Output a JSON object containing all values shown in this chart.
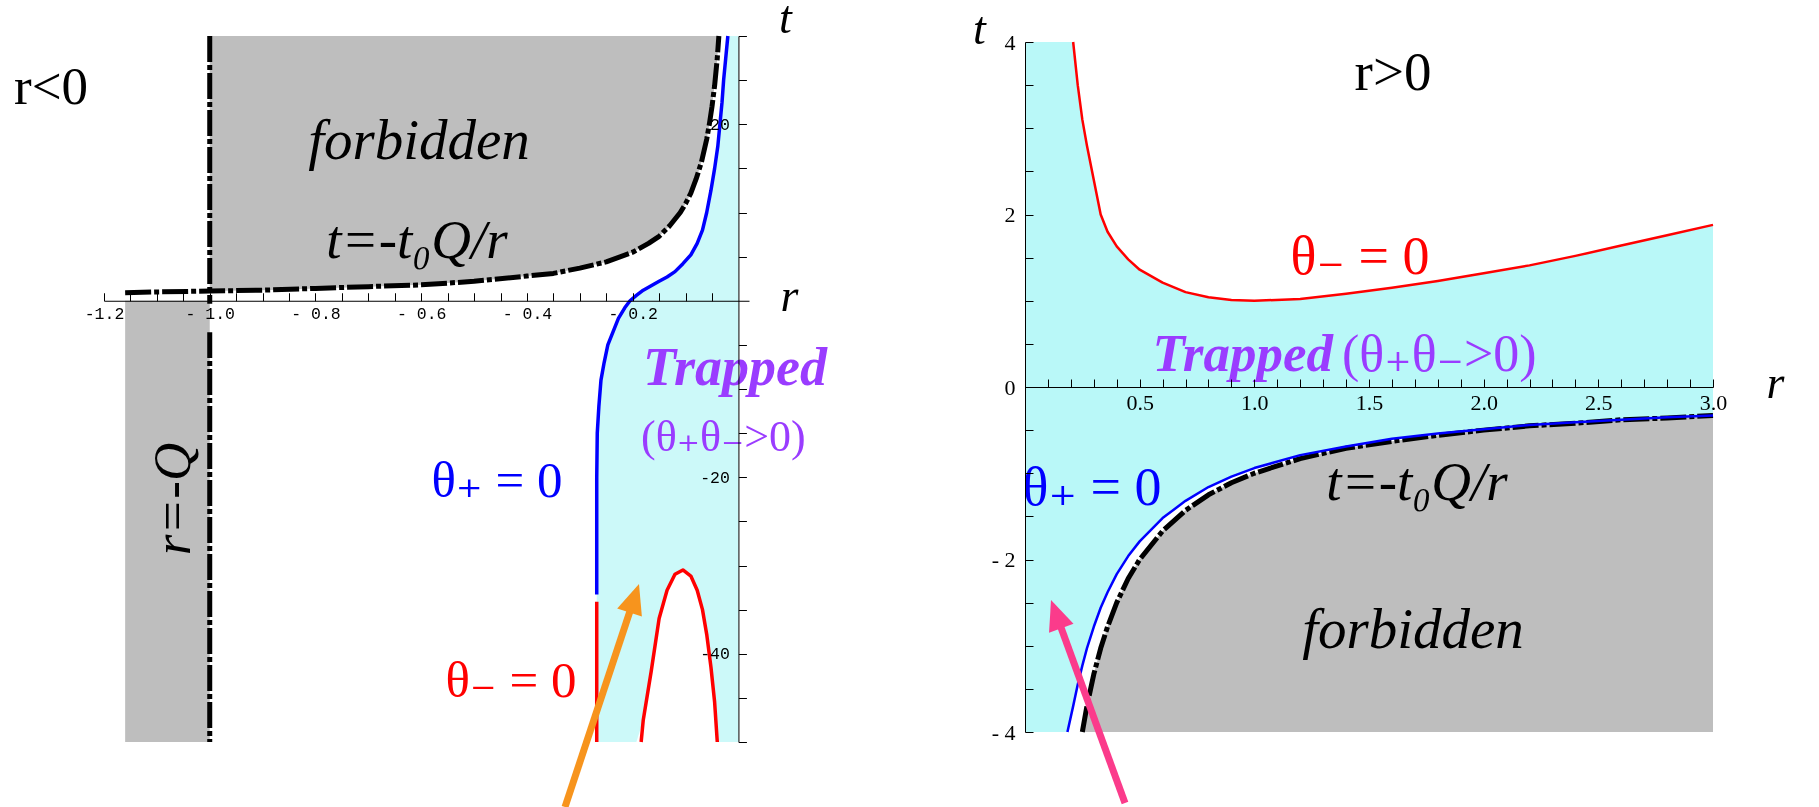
{
  "chart_data": [
    {
      "type": "line",
      "title": "r<0",
      "xlabel": "r",
      "ylabel": "t",
      "xlim": [
        -1.2,
        0.02
      ],
      "ylim": [
        -50,
        30
      ],
      "xticks": [
        -1.2,
        {
          "value": -1.15,
          "label": null
        },
        {
          "value": -1.1,
          "label": null
        },
        {
          "value": -1.05,
          "label": null
        },
        {
          "value": -1.0,
          "label": "- 1.0"
        },
        {
          "value": -0.95,
          "label": null
        },
        {
          "value": -0.9,
          "label": null
        },
        {
          "value": -0.85,
          "label": null
        },
        {
          "value": -0.8,
          "label": "- 0.8"
        },
        {
          "value": -0.75,
          "label": null
        },
        {
          "value": -0.7,
          "label": null
        },
        {
          "value": -0.65,
          "label": null
        },
        {
          "value": -0.6,
          "label": "- 0.6"
        },
        {
          "value": -0.55,
          "label": null
        },
        {
          "value": -0.5,
          "label": null
        },
        {
          "value": -0.45,
          "label": null
        },
        {
          "value": -0.4,
          "label": "- 0.4"
        },
        {
          "value": -0.35,
          "label": null
        },
        {
          "value": -0.3,
          "label": null
        },
        {
          "value": -0.25,
          "label": null
        },
        {
          "value": -0.2,
          "label": "- 0.2"
        },
        {
          "value": -0.15,
          "label": null
        },
        {
          "value": -0.1,
          "label": null
        },
        {
          "value": -0.05,
          "label": null
        }
      ],
      "yticks": [
        {
          "value": 30,
          "label": null
        },
        {
          "value": 25,
          "label": null
        },
        20,
        {
          "value": 15,
          "label": null
        },
        {
          "value": 10,
          "label": null
        },
        {
          "value": 5,
          "label": null
        },
        {
          "value": -5,
          "label": null
        },
        {
          "value": -10,
          "label": null
        },
        {
          "value": -15,
          "label": null
        },
        -20,
        {
          "value": -25,
          "label": null
        },
        {
          "value": -30,
          "label": null
        },
        {
          "value": -35,
          "label": null
        },
        -40,
        {
          "value": -45,
          "label": null
        },
        {
          "value": -50,
          "label": null
        }
      ],
      "series": [
        {
          "color": "#0000ff",
          "x": [
            -0.268,
            -0.268,
            -0.267,
            -0.264,
            -0.26,
            -0.254,
            -0.247,
            -0.237,
            -0.227,
            -0.215,
            -0.205,
            -0.193,
            -0.18,
            -0.165,
            -0.15,
            -0.135,
            -0.12,
            -0.105,
            -0.09,
            -0.078,
            -0.068,
            -0.06,
            -0.052,
            -0.045,
            -0.039,
            -0.035,
            -0.031,
            -0.028,
            -0.024,
            -0.02,
            0
          ],
          "values": [
            -33.3,
            -20,
            -15,
            -12,
            -9,
            -7,
            -5,
            -3.5,
            -2,
            -0.8,
            0,
            0.6,
            1.2,
            1.7,
            2.2,
            2.7,
            3.3,
            4.2,
            5.2,
            6.5,
            8,
            10,
            12.5,
            15,
            17.5,
            20,
            22.5,
            25,
            27.5,
            30,
            null
          ],
          "lower": [
            -50,
            -50,
            -50,
            -50,
            -50,
            -50,
            -50,
            -50,
            -50,
            -50,
            -50,
            -50,
            -47.5,
            -42,
            -36,
            -32.8,
            -31,
            -30.5,
            -31.2,
            -32.8,
            -35,
            -37.8,
            -41.5,
            -45.5,
            -50,
            -50,
            -50,
            -50,
            -50,
            -50,
            -50
          ],
          "upper": [
            -33.3,
            -20,
            -15,
            -12,
            -9,
            -7,
            -5,
            -3.5,
            -2,
            -0.8,
            0,
            0.6,
            1.2,
            1.7,
            2.2,
            2.7,
            3.3,
            4.2,
            5.2,
            6.5,
            8,
            10,
            12.5,
            15,
            17.5,
            20,
            22.5,
            25,
            27.5,
            30,
            30
          ]
        },
        {
          "color": "#ff0000",
          "x": [
            -0.268,
            -0.268
          ],
          "values": [
            -50,
            -34.1
          ]
        },
        {
          "color": "#ff0000",
          "x": [
            -0.184,
            -0.18,
            -0.165,
            -0.15,
            -0.135,
            -0.12,
            -0.105,
            -0.09,
            -0.078,
            -0.068,
            -0.06,
            -0.052,
            -0.045,
            -0.04
          ],
          "values": [
            -50,
            -47.5,
            -42,
            -36,
            -32.8,
            -31,
            -30.5,
            -31.2,
            -32.8,
            -35,
            -37.8,
            -41.5,
            -45.5,
            -50
          ]
        },
        {
          "color": "#000000",
          "line_style": "dashed",
          "x": [
            -1.16,
            -1.1,
            -1.0,
            -1.0,
            -0.9,
            -0.8,
            -0.7,
            -0.6,
            -0.5,
            -0.4,
            -0.35,
            -0.3,
            -0.25,
            -0.2,
            -0.17,
            -0.15,
            -0.13,
            -0.11,
            -0.1,
            -0.09,
            -0.08,
            -0.07,
            -0.06,
            -0.055,
            -0.05,
            -0.045,
            -0.04,
            -0.037
          ],
          "values": [
            0.9,
            1.0,
            1.1,
            1.1,
            1.2,
            1.4,
            1.6,
            1.8,
            2.2,
            2.8,
            3.1,
            3.7,
            4.4,
            5.5,
            6.5,
            7.3,
            8.5,
            10,
            11,
            12.2,
            13.8,
            15.7,
            18.3,
            20,
            22,
            24.4,
            27.5,
            30
          ],
          "lower": [
            -50,
            -50,
            -50,
            1.1,
            1.2,
            1.4,
            1.6,
            1.8,
            2.2,
            2.8,
            3.1,
            3.7,
            4.4,
            5.5,
            6.5,
            7.3,
            8.5,
            10,
            11,
            12.2,
            13.8,
            15.7,
            18.3,
            20,
            22,
            24.4,
            27.5,
            30
          ],
          "upper": [
            0,
            0,
            0,
            30,
            30,
            30,
            30,
            30,
            30,
            30,
            30,
            30,
            30,
            30,
            30,
            30,
            30,
            30,
            30,
            30,
            30,
            30,
            30,
            30,
            30,
            30,
            30,
            30
          ]
        }
      ],
      "ref_lines": [
        {
          "axis": "x",
          "value": -1.0,
          "color": "#000000",
          "line_style": "dashed"
        }
      ],
      "annotations": [
        "forbidden",
        "t=-t₀Q/r",
        "r=-Q",
        "θ₊ = 0",
        "θ₋ = 0",
        "Trapped",
        "(θ₊θ₋>0)"
      ]
    },
    {
      "type": "line",
      "title": "r>0",
      "xlabel": "r",
      "ylabel": "t",
      "xlim": [
        0,
        3
      ],
      "ylim": [
        -4,
        4
      ],
      "xticks": [
        {
          "value": 0.1,
          "label": null
        },
        {
          "value": 0.2,
          "label": null
        },
        {
          "value": 0.3,
          "label": null
        },
        {
          "value": 0.4,
          "label": null
        },
        0.5,
        {
          "value": 0.6,
          "label": null
        },
        {
          "value": 0.7,
          "label": null
        },
        {
          "value": 0.8,
          "label": null
        },
        {
          "value": 0.9,
          "label": null
        },
        {
          "value": 1.0,
          "label": "1.0"
        },
        {
          "value": 1.1,
          "label": null
        },
        {
          "value": 1.2,
          "label": null
        },
        {
          "value": 1.3,
          "label": null
        },
        {
          "value": 1.4,
          "label": null
        },
        1.5,
        {
          "value": 1.6,
          "label": null
        },
        {
          "value": 1.7,
          "label": null
        },
        {
          "value": 1.8,
          "label": null
        },
        {
          "value": 1.9,
          "label": null
        },
        {
          "value": 2.0,
          "label": "2.0"
        },
        {
          "value": 2.1,
          "label": null
        },
        {
          "value": 2.2,
          "label": null
        },
        {
          "value": 2.3,
          "label": null
        },
        {
          "value": 2.4,
          "label": null
        },
        2.5,
        {
          "value": 2.6,
          "label": null
        },
        {
          "value": 2.7,
          "label": null
        },
        {
          "value": 2.8,
          "label": null
        },
        {
          "value": 2.9,
          "label": null
        },
        {
          "value": 3.0,
          "label": "3.0"
        }
      ],
      "yticks": [
        4,
        {
          "value": 3.5,
          "label": null
        },
        {
          "value": 3,
          "label": null
        },
        {
          "value": 2.5,
          "label": null
        },
        2,
        {
          "value": 1.5,
          "label": null
        },
        {
          "value": 1,
          "label": null
        },
        {
          "value": 0.5,
          "label": null
        },
        0,
        {
          "value": -0.5,
          "label": null
        },
        {
          "value": -1,
          "label": null
        },
        {
          "value": -1.5,
          "label": null
        },
        {
          "value": -2,
          "label": "- 2"
        },
        {
          "value": -2.5,
          "label": null
        },
        {
          "value": -3,
          "label": null
        },
        {
          "value": -3.5,
          "label": null
        },
        {
          "value": -4,
          "label": "- 4"
        }
      ],
      "series": [
        {
          "color": "#ff0000",
          "x": [
            0.21,
            0.23,
            0.25,
            0.27,
            0.3,
            0.33,
            0.36,
            0.4,
            0.45,
            0.5,
            0.6,
            0.7,
            0.8,
            0.9,
            1.0,
            1.2,
            1.4,
            1.6,
            1.8,
            2.0,
            2.2,
            2.4,
            2.6,
            2.8,
            3.0
          ],
          "values": [
            4,
            3.5,
            3.1,
            2.8,
            2.4,
            2.0,
            1.8,
            1.63,
            1.48,
            1.36,
            1.21,
            1.1,
            1.04,
            1.01,
            1.0,
            1.02,
            1.08,
            1.15,
            1.23,
            1.32,
            1.41,
            1.52,
            1.64,
            1.76,
            1.88
          ]
        },
        {
          "color": "#000000",
          "line_style": "dashed",
          "x": [
            0.25,
            0.27,
            0.3,
            0.33,
            0.36,
            0.4,
            0.45,
            0.5,
            0.6,
            0.7,
            0.8,
            0.9,
            1.0,
            1.2,
            1.4,
            1.6,
            1.8,
            2.0,
            2.2,
            2.4,
            2.6,
            2.8,
            3.0
          ],
          "values": [
            -4,
            -3.7,
            -3.33,
            -3.03,
            -2.78,
            -2.5,
            -2.22,
            -2,
            -1.67,
            -1.43,
            -1.25,
            -1.11,
            -1,
            -0.83,
            -0.71,
            -0.63,
            -0.56,
            -0.5,
            -0.45,
            -0.42,
            -0.38,
            -0.36,
            -0.33
          ],
          "lower": [
            -4,
            -4,
            -4,
            -4,
            -4,
            -4,
            -4,
            -4,
            -4,
            -4,
            -4,
            -4,
            -4,
            -4,
            -4,
            -4,
            -4,
            -4,
            -4,
            -4,
            -4,
            -4,
            -4
          ],
          "upper": [
            -4,
            -3.7,
            -3.33,
            -3.03,
            -2.78,
            -2.5,
            -2.22,
            -2,
            -1.67,
            -1.43,
            -1.25,
            -1.11,
            -1,
            -0.83,
            -0.71,
            -0.63,
            -0.56,
            -0.5,
            -0.45,
            -0.42,
            -0.38,
            -0.36,
            -0.33
          ]
        },
        {
          "color": "#0000ff",
          "x": [
            0,
            0.185,
            0.21,
            0.23,
            0.25,
            0.27,
            0.3,
            0.33,
            0.36,
            0.4,
            0.45,
            0.5,
            0.6,
            0.7,
            0.8,
            0.9,
            1.0,
            1.2,
            1.4,
            1.6,
            1.8,
            2.0,
            2.2,
            2.4,
            2.6,
            2.8,
            3.0
          ],
          "values": [
            null,
            -4,
            -3.7,
            -3.45,
            -3.23,
            -3.03,
            -2.78,
            -2.56,
            -2.38,
            -2.17,
            -1.96,
            -1.79,
            -1.52,
            -1.32,
            -1.16,
            -1.04,
            -0.94,
            -0.79,
            -0.69,
            -0.6,
            -0.54,
            -0.49,
            -0.44,
            -0.41,
            -0.38,
            -0.35,
            -0.33
          ],
          "lower": [
            -4,
            -4,
            -3.7,
            -3.45,
            -3.23,
            -3.03,
            -2.78,
            -2.56,
            -2.38,
            -2.17,
            -1.96,
            -1.79,
            -1.52,
            -1.32,
            -1.16,
            -1.04,
            -0.94,
            -0.79,
            -0.69,
            -0.6,
            -0.54,
            -0.49,
            -0.44,
            -0.41,
            -0.38,
            -0.35,
            -0.33
          ],
          "upper": [
            4,
            4,
            4,
            3.5,
            3.1,
            2.8,
            2.4,
            2.0,
            1.8,
            1.63,
            1.48,
            1.36,
            1.21,
            1.1,
            1.04,
            1.01,
            1.0,
            1.02,
            1.08,
            1.15,
            1.23,
            1.32,
            1.41,
            1.52,
            1.64,
            1.76,
            1.88
          ]
        }
      ],
      "annotations": [
        "θ₋ = 0",
        "Trapped",
        "(θ₊θ₋>0)",
        "θ₊ = 0",
        "t=-t₀Q/r",
        "forbidden"
      ]
    }
  ]
}
